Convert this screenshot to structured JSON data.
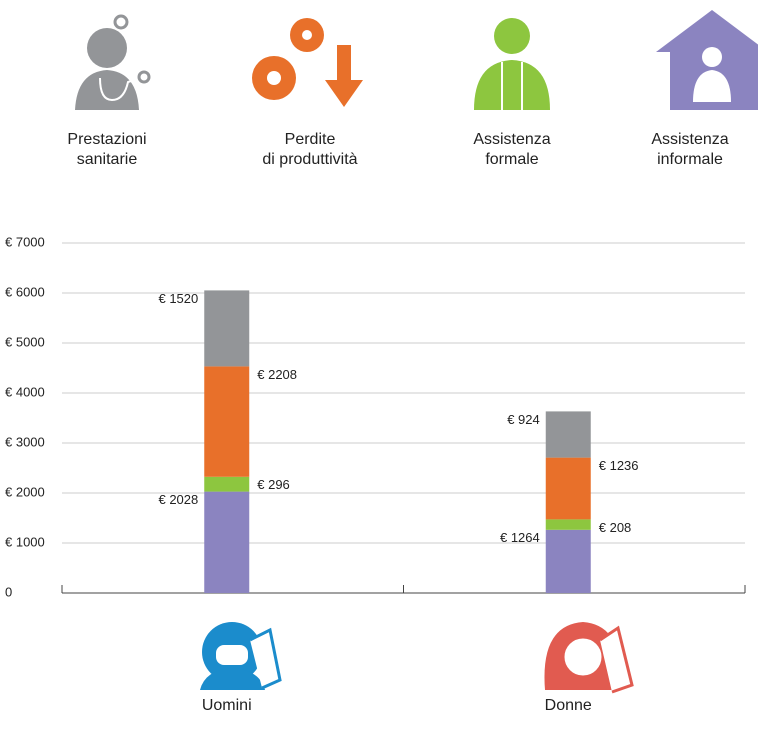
{
  "chart_data": {
    "type": "stacked-bar",
    "categories": [
      "Uomini",
      "Donne"
    ],
    "series": [
      {
        "name": "Assistenza\ninformale",
        "color": "#8b84c0",
        "values": [
          2028,
          1264
        ],
        "value_labels": [
          "€ 2028",
          "€ 1264"
        ]
      },
      {
        "name": "Assistenza\nformale",
        "color": "#8dc63f",
        "values": [
          296,
          208
        ],
        "value_labels": [
          "€ 296",
          "€ 208"
        ]
      },
      {
        "name": "Perdite\ndi produttività",
        "color": "#e8702a",
        "values": [
          2208,
          1236
        ],
        "value_labels": [
          "€ 2208",
          "€ 1236"
        ]
      },
      {
        "name": "Prestazioni\nsanitarie",
        "color": "#939598",
        "values": [
          1520,
          924
        ],
        "value_labels": [
          "€ 1520",
          "€ 924"
        ]
      }
    ],
    "ylim": [
      0,
      7000
    ],
    "yticks": [
      0,
      {
        "value": 1000,
        "label": "€ 1000"
      },
      {
        "value": 2000,
        "label": "€ 2000"
      },
      {
        "value": 3000,
        "label": "€ 3000"
      },
      {
        "value": 4000,
        "label": "€ 4000"
      },
      {
        "value": 5000,
        "label": "€ 5000"
      },
      {
        "value": 6000,
        "label": "€ 6000"
      },
      {
        "value": 7000,
        "label": "€ 7000"
      }
    ],
    "grid": true
  }
}
